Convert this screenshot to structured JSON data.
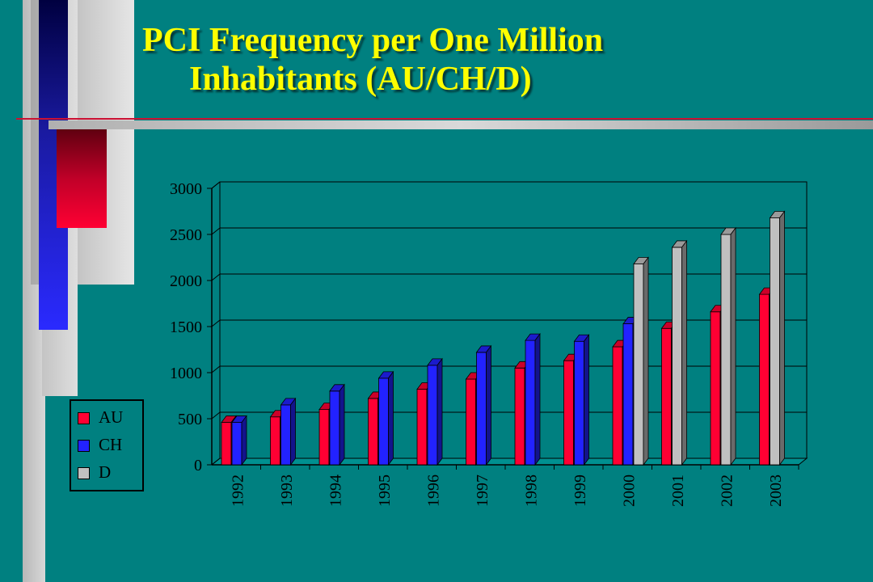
{
  "title_line1": "PCI Frequency per One Million",
  "title_line2": "Inhabitants (AU/CH/D)",
  "colors": {
    "background": "#008080",
    "title": "#ffff00",
    "AU": "#ff0033",
    "CH": "#2222ff",
    "D": "#c0c0c0"
  },
  "legend": [
    "AU",
    "CH",
    "D"
  ],
  "chart_data": {
    "type": "bar",
    "title": "PCI Frequency per One Million Inhabitants (AU/CH/D)",
    "categories": [
      "1992",
      "1993",
      "1994",
      "1995",
      "1996",
      "1997",
      "1998",
      "1999",
      "2000",
      "2001",
      "2002",
      "2003"
    ],
    "series": [
      {
        "name": "AU",
        "values": [
          460,
          520,
          600,
          720,
          820,
          930,
          1050,
          1130,
          1280,
          1480,
          1660,
          1850
        ]
      },
      {
        "name": "CH",
        "values": [
          460,
          650,
          800,
          940,
          1080,
          1220,
          1350,
          1340,
          1530,
          null,
          null,
          null
        ]
      },
      {
        "name": "D",
        "values": [
          null,
          null,
          null,
          null,
          null,
          null,
          null,
          null,
          2180,
          2360,
          2500,
          2680
        ]
      }
    ],
    "y_ticks": [
      0,
      500,
      1000,
      1500,
      2000,
      2500,
      3000
    ],
    "ylim": [
      0,
      3000
    ],
    "grid": true,
    "legend_position": "left"
  }
}
